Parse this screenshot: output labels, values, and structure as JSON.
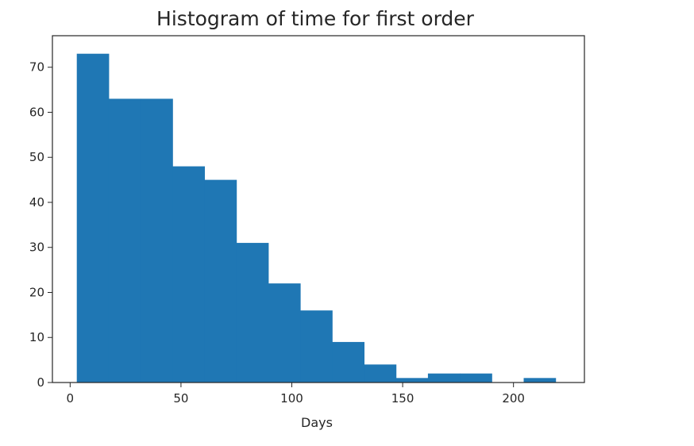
{
  "chart_data": {
    "type": "bar",
    "title": "Histogram of time for first order",
    "xlabel": "Days",
    "ylabel": "",
    "xlim": [
      -8,
      232
    ],
    "ylim": [
      0,
      77
    ],
    "xticks": [
      0,
      50,
      100,
      150,
      200
    ],
    "yticks": [
      0,
      10,
      20,
      30,
      40,
      50,
      60,
      70
    ],
    "bin_edges": [
      3,
      17.4,
      31.8,
      46.2,
      60.6,
      75,
      89.4,
      103.8,
      118.2,
      132.6,
      147,
      161.4,
      175.8,
      190.2,
      204.6,
      219
    ],
    "values": [
      73,
      63,
      63,
      48,
      45,
      31,
      22,
      16,
      9,
      4,
      1,
      2,
      2,
      0,
      1
    ],
    "grid": false,
    "bar_color": "#1f77b4"
  }
}
